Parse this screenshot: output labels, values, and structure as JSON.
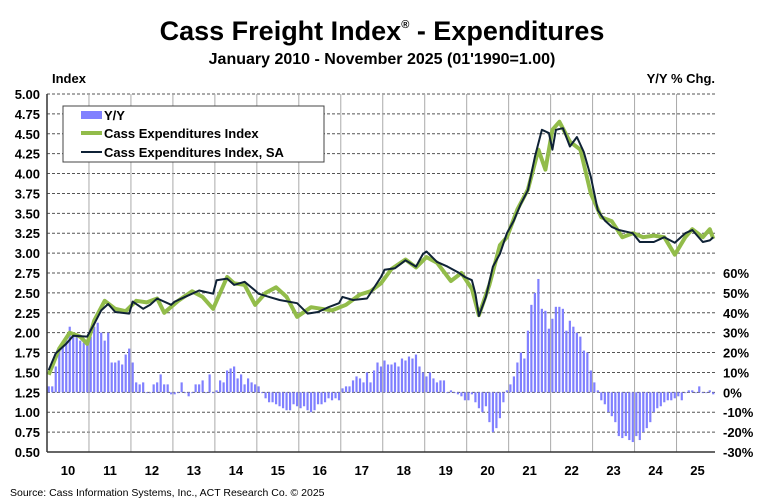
{
  "chart_data": {
    "type": "bar+line",
    "title": "Cass Freight Index",
    "title_mark": "®",
    "title_suffix": " - Expenditures",
    "subtitle": "January 2010 - November 2025 (01'1990=1.00)",
    "ylabel_left": "Index",
    "ylabel_right": "Y/Y % Chg.",
    "source": "Source: Cass Information Systems, Inc., ACT Research Co. © 2025",
    "ylim_left": [
      0.5,
      5.0
    ],
    "yticks_left": [
      "5.00",
      "4.75",
      "4.50",
      "4.25",
      "4.00",
      "3.75",
      "3.50",
      "3.25",
      "3.00",
      "2.75",
      "2.50",
      "2.25",
      "2.00",
      "1.75",
      "1.50",
      "1.25",
      "1.00",
      "0.75",
      "0.50"
    ],
    "ylim_right_pct": [
      -30,
      60
    ],
    "yticks_right": [
      "60%",
      "50%",
      "40%",
      "30%",
      "20%",
      "10%",
      "0%",
      "-10%",
      "-20%",
      "-30%"
    ],
    "xticks": [
      "10",
      "11",
      "12",
      "13",
      "14",
      "15",
      "16",
      "17",
      "18",
      "19",
      "20",
      "21",
      "22",
      "23",
      "24",
      "25"
    ],
    "start": "2010-01",
    "grid": true,
    "legend_position": "top-left",
    "colors": {
      "yy": "#8080ff",
      "nsa": "#92bc4a",
      "sa": "#0f2236"
    },
    "series": [
      {
        "name": "Y/Y",
        "type": "bar",
        "axis": "right",
        "unit": "%",
        "values": [
          3,
          3,
          13,
          21,
          25,
          28,
          33,
          30,
          28,
          26,
          25,
          26,
          28,
          33,
          35,
          30,
          26,
          30,
          15,
          15,
          16,
          14,
          19,
          22,
          15,
          5,
          4,
          5,
          0,
          0,
          4,
          5,
          9,
          4,
          4,
          -1,
          -1,
          0,
          5,
          0,
          -2,
          0,
          4,
          4,
          6,
          0,
          9,
          0,
          1,
          6,
          5,
          11,
          12,
          13,
          7,
          9,
          4,
          7,
          5,
          4,
          3,
          0,
          -3,
          -5,
          -5,
          -6,
          -7,
          -8,
          -9,
          -9,
          -6,
          -7,
          -8,
          -7,
          -9,
          -10,
          -9,
          -6,
          -6,
          -5,
          -3,
          -4,
          -3,
          -4,
          2,
          3,
          3,
          6,
          8,
          7,
          5,
          10,
          5,
          11,
          15,
          13,
          16,
          14,
          14,
          15,
          13,
          17,
          16,
          18,
          17,
          19,
          13,
          10,
          8,
          10,
          7,
          5,
          6,
          6,
          0,
          1,
          0,
          -1,
          -2,
          -4,
          -4,
          -1,
          -5,
          -8,
          -10,
          -7,
          -15,
          -20,
          -18,
          -13,
          -5,
          1,
          4,
          8,
          15,
          20,
          17,
          31,
          44,
          50,
          57,
          42,
          41,
          32,
          37,
          43,
          43,
          42,
          31,
          36,
          33,
          30,
          28,
          21,
          20,
          11,
          5,
          1,
          -4,
          -6,
          -10,
          -12,
          -15,
          -22,
          -23,
          -22,
          -24,
          -25,
          -22,
          -24,
          -20,
          -18,
          -15,
          -10,
          -8,
          -7,
          -5,
          -4,
          -4,
          -3,
          -2,
          -4,
          0,
          1,
          1,
          0,
          3,
          0,
          0,
          1,
          -1
        ]
      },
      {
        "name": "Cass Expenditures Index",
        "type": "line",
        "axis": "left",
        "points": [
          [
            "2010-01",
            1.47
          ],
          [
            "2010-04",
            1.8
          ],
          [
            "2010-07",
            2.0
          ],
          [
            "2010-10",
            1.95
          ],
          [
            "2010-12",
            1.86
          ],
          [
            "2011-02",
            2.15
          ],
          [
            "2011-05",
            2.4
          ],
          [
            "2011-08",
            2.3
          ],
          [
            "2011-11",
            2.27
          ],
          [
            "2012-02",
            2.4
          ],
          [
            "2012-05",
            2.38
          ],
          [
            "2012-08",
            2.43
          ],
          [
            "2012-10",
            2.25
          ],
          [
            "2013-02",
            2.4
          ],
          [
            "2013-06",
            2.52
          ],
          [
            "2013-09",
            2.45
          ],
          [
            "2013-12",
            2.3
          ],
          [
            "2014-04",
            2.7
          ],
          [
            "2014-06",
            2.62
          ],
          [
            "2014-09",
            2.6
          ],
          [
            "2014-12",
            2.35
          ],
          [
            "2015-03",
            2.5
          ],
          [
            "2015-06",
            2.57
          ],
          [
            "2015-09",
            2.45
          ],
          [
            "2015-12",
            2.2
          ],
          [
            "2016-04",
            2.32
          ],
          [
            "2016-07",
            2.3
          ],
          [
            "2016-10",
            2.28
          ],
          [
            "2017-02",
            2.35
          ],
          [
            "2017-06",
            2.48
          ],
          [
            "2017-09",
            2.52
          ],
          [
            "2017-12",
            2.62
          ],
          [
            "2018-03",
            2.8
          ],
          [
            "2018-07",
            2.92
          ],
          [
            "2018-10",
            2.82
          ],
          [
            "2019-01",
            2.95
          ],
          [
            "2019-04",
            2.88
          ],
          [
            "2019-08",
            2.65
          ],
          [
            "2019-11",
            2.75
          ],
          [
            "2020-02",
            2.55
          ],
          [
            "2020-04",
            2.22
          ],
          [
            "2020-07",
            2.6
          ],
          [
            "2020-10",
            3.1
          ],
          [
            "2020-12",
            3.2
          ],
          [
            "2021-03",
            3.55
          ],
          [
            "2021-06",
            3.8
          ],
          [
            "2021-09",
            4.3
          ],
          [
            "2021-11",
            4.05
          ],
          [
            "2022-01",
            4.55
          ],
          [
            "2022-03",
            4.65
          ],
          [
            "2022-06",
            4.4
          ],
          [
            "2022-09",
            4.3
          ],
          [
            "2022-12",
            3.75
          ],
          [
            "2023-03",
            3.45
          ],
          [
            "2023-06",
            3.4
          ],
          [
            "2023-09",
            3.2
          ],
          [
            "2023-12",
            3.25
          ],
          [
            "2024-03",
            3.2
          ],
          [
            "2024-06",
            3.22
          ],
          [
            "2024-09",
            3.2
          ],
          [
            "2024-12",
            2.98
          ],
          [
            "2025-03",
            3.2
          ],
          [
            "2025-05",
            3.3
          ],
          [
            "2025-08",
            3.2
          ],
          [
            "2025-10",
            3.3
          ],
          [
            "2025-11",
            3.18
          ]
        ]
      },
      {
        "name": "Cass Expenditures Index, SA",
        "type": "line",
        "axis": "left",
        "points": [
          [
            "2010-01",
            1.53
          ],
          [
            "2010-03",
            1.74
          ],
          [
            "2010-06",
            1.86
          ],
          [
            "2010-08",
            1.96
          ],
          [
            "2010-12",
            1.95
          ],
          [
            "2011-02",
            2.11
          ],
          [
            "2011-04",
            2.28
          ],
          [
            "2011-06",
            2.36
          ],
          [
            "2011-08",
            2.26
          ],
          [
            "2011-12",
            2.24
          ],
          [
            "2012-01",
            2.39
          ],
          [
            "2012-04",
            2.3
          ],
          [
            "2012-06",
            2.35
          ],
          [
            "2012-08",
            2.43
          ],
          [
            "2012-12",
            2.35
          ],
          [
            "2013-01",
            2.39
          ],
          [
            "2013-05",
            2.47
          ],
          [
            "2013-08",
            2.53
          ],
          [
            "2013-12",
            2.49
          ],
          [
            "2014-01",
            2.66
          ],
          [
            "2014-04",
            2.68
          ],
          [
            "2014-06",
            2.6
          ],
          [
            "2014-09",
            2.64
          ],
          [
            "2014-12",
            2.53
          ],
          [
            "2015-01",
            2.49
          ],
          [
            "2015-04",
            2.45
          ],
          [
            "2015-07",
            2.41
          ],
          [
            "2015-12",
            2.37
          ],
          [
            "2016-03",
            2.24
          ],
          [
            "2016-06",
            2.26
          ],
          [
            "2016-09",
            2.32
          ],
          [
            "2016-12",
            2.37
          ],
          [
            "2017-01",
            2.45
          ],
          [
            "2017-04",
            2.41
          ],
          [
            "2017-08",
            2.43
          ],
          [
            "2017-12",
            2.7
          ],
          [
            "2018-01",
            2.79
          ],
          [
            "2018-04",
            2.81
          ],
          [
            "2018-07",
            2.91
          ],
          [
            "2018-10",
            2.83
          ],
          [
            "2018-12",
            2.99
          ],
          [
            "2019-01",
            3.02
          ],
          [
            "2019-04",
            2.89
          ],
          [
            "2019-07",
            2.83
          ],
          [
            "2019-10",
            2.76
          ],
          [
            "2019-12",
            2.7
          ],
          [
            "2020-02",
            2.66
          ],
          [
            "2020-03",
            2.49
          ],
          [
            "2020-04",
            2.21
          ],
          [
            "2020-06",
            2.45
          ],
          [
            "2020-08",
            2.83
          ],
          [
            "2020-10",
            2.99
          ],
          [
            "2020-12",
            3.25
          ],
          [
            "2021-02",
            3.41
          ],
          [
            "2021-04",
            3.62
          ],
          [
            "2021-06",
            3.79
          ],
          [
            "2021-08",
            4.21
          ],
          [
            "2021-10",
            4.55
          ],
          [
            "2021-12",
            4.51
          ],
          [
            "2022-01",
            4.3
          ],
          [
            "2022-02",
            4.55
          ],
          [
            "2022-04",
            4.57
          ],
          [
            "2022-06",
            4.34
          ],
          [
            "2022-08",
            4.46
          ],
          [
            "2022-10",
            4.27
          ],
          [
            "2022-12",
            3.96
          ],
          [
            "2023-02",
            3.54
          ],
          [
            "2023-04",
            3.41
          ],
          [
            "2023-06",
            3.33
          ],
          [
            "2023-08",
            3.29
          ],
          [
            "2023-12",
            3.25
          ],
          [
            "2024-02",
            3.14
          ],
          [
            "2024-06",
            3.14
          ],
          [
            "2024-09",
            3.2
          ],
          [
            "2024-12",
            3.13
          ],
          [
            "2025-03",
            3.25
          ],
          [
            "2025-05",
            3.29
          ],
          [
            "2025-08",
            3.14
          ],
          [
            "2025-10",
            3.16
          ],
          [
            "2025-11",
            3.2
          ]
        ]
      }
    ]
  }
}
